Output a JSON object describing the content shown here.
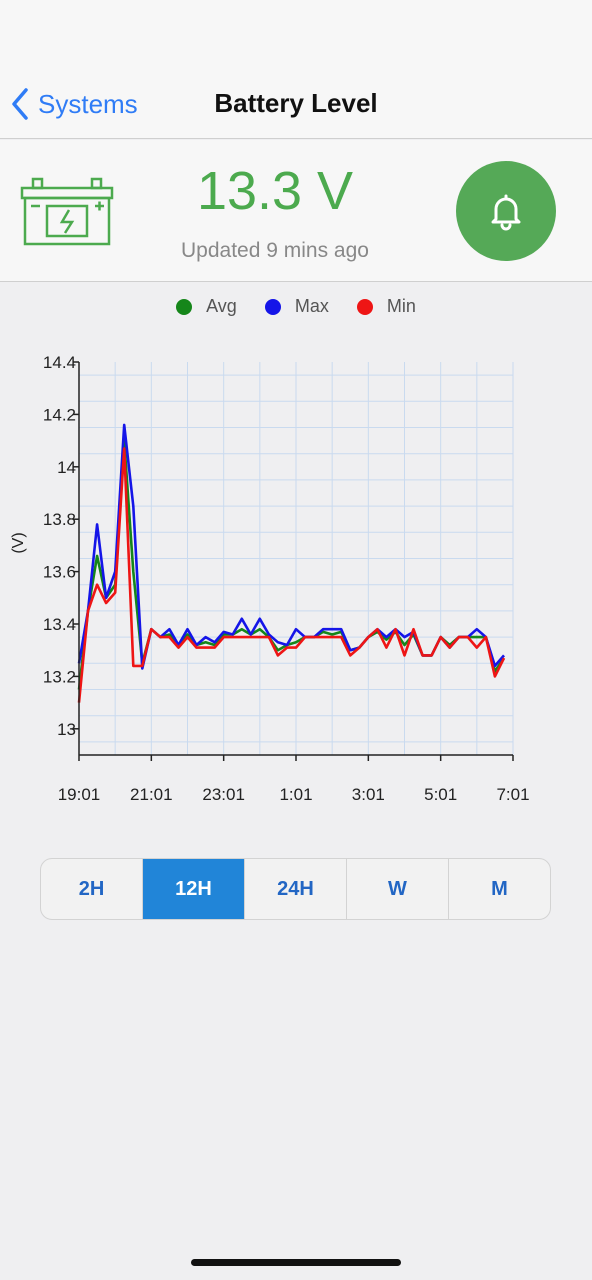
{
  "nav": {
    "back_label": "Systems",
    "title": "Battery Level"
  },
  "status": {
    "voltage": "13.3 V",
    "updated": "Updated 9 mins ago"
  },
  "colors": {
    "accent": "#2f7cf6",
    "good": "#4caa4e",
    "avg": "#15861a",
    "max": "#1515e8",
    "min": "#ee1515",
    "segment_active": "#2185d8"
  },
  "icons": {
    "battery": "battery-icon",
    "bell": "bell-icon",
    "back": "chevron-left-icon"
  },
  "legend": [
    {
      "label": "Avg",
      "color": "#15861a"
    },
    {
      "label": "Max",
      "color": "#1515e8"
    },
    {
      "label": "Min",
      "color": "#ee1515"
    }
  ],
  "chart_data": {
    "type": "line",
    "ylabel": "(V)",
    "ylim": [
      12.9,
      14.4
    ],
    "yticks": [
      13,
      13.2,
      13.4,
      13.6,
      13.8,
      14,
      14.2,
      14.4
    ],
    "xlim": [
      0,
      12
    ],
    "xticks": [
      {
        "v": 0,
        "label": "19:01"
      },
      {
        "v": 2,
        "label": "21:01"
      },
      {
        "v": 4,
        "label": "23:01"
      },
      {
        "v": 6,
        "label": "1:01"
      },
      {
        "v": 8,
        "label": "3:01"
      },
      {
        "v": 10,
        "label": "5:01"
      },
      {
        "v": 12,
        "label": "7:01"
      }
    ],
    "grid": true,
    "x": [
      0,
      0.25,
      0.5,
      0.75,
      1.0,
      1.25,
      1.5,
      1.75,
      2.0,
      2.25,
      2.5,
      2.75,
      3.0,
      3.25,
      3.5,
      3.75,
      4.0,
      4.25,
      4.5,
      4.75,
      5.0,
      5.25,
      5.5,
      5.75,
      6.0,
      6.25,
      6.5,
      6.75,
      7.0,
      7.25,
      7.5,
      7.75,
      8.0,
      8.25,
      8.5,
      8.75,
      9.0,
      9.25,
      9.5,
      9.75,
      10.0,
      10.25,
      10.5,
      10.75,
      11.0,
      11.25,
      11.5,
      11.75
    ],
    "series": [
      {
        "name": "Avg",
        "color": "#15861a",
        "values": [
          13.15,
          13.45,
          13.66,
          13.5,
          13.55,
          14.1,
          13.6,
          13.25,
          13.38,
          13.35,
          13.36,
          13.32,
          13.36,
          13.32,
          13.33,
          13.32,
          13.36,
          13.36,
          13.38,
          13.36,
          13.38,
          13.35,
          13.3,
          13.32,
          13.33,
          13.35,
          13.35,
          13.37,
          13.36,
          13.37,
          13.3,
          13.31,
          13.35,
          13.37,
          13.34,
          13.37,
          13.32,
          13.36,
          13.28,
          13.28,
          13.35,
          13.32,
          13.35,
          13.35,
          13.35,
          13.35,
          13.22,
          13.27
        ]
      },
      {
        "name": "Max",
        "color": "#1515e8",
        "values": [
          13.25,
          13.45,
          13.78,
          13.5,
          13.6,
          14.16,
          13.85,
          13.23,
          13.38,
          13.35,
          13.38,
          13.32,
          13.38,
          13.32,
          13.35,
          13.33,
          13.37,
          13.36,
          13.42,
          13.36,
          13.42,
          13.36,
          13.33,
          13.32,
          13.38,
          13.35,
          13.35,
          13.38,
          13.38,
          13.38,
          13.3,
          13.31,
          13.35,
          13.38,
          13.35,
          13.38,
          13.35,
          13.37,
          13.28,
          13.28,
          13.35,
          13.31,
          13.35,
          13.35,
          13.38,
          13.35,
          13.24,
          13.28
        ]
      },
      {
        "name": "Min",
        "color": "#ee1515",
        "values": [
          13.1,
          13.45,
          13.55,
          13.48,
          13.52,
          14.07,
          13.24,
          13.24,
          13.38,
          13.35,
          13.35,
          13.31,
          13.35,
          13.31,
          13.31,
          13.31,
          13.35,
          13.35,
          13.35,
          13.35,
          13.35,
          13.35,
          13.28,
          13.31,
          13.31,
          13.35,
          13.35,
          13.35,
          13.35,
          13.35,
          13.28,
          13.31,
          13.35,
          13.38,
          13.31,
          13.38,
          13.28,
          13.38,
          13.28,
          13.28,
          13.35,
          13.31,
          13.35,
          13.35,
          13.31,
          13.35,
          13.2,
          13.27
        ]
      }
    ]
  },
  "segments": [
    {
      "label": "2H",
      "active": false
    },
    {
      "label": "12H",
      "active": true
    },
    {
      "label": "24H",
      "active": false
    },
    {
      "label": "W",
      "active": false
    },
    {
      "label": "M",
      "active": false
    }
  ]
}
